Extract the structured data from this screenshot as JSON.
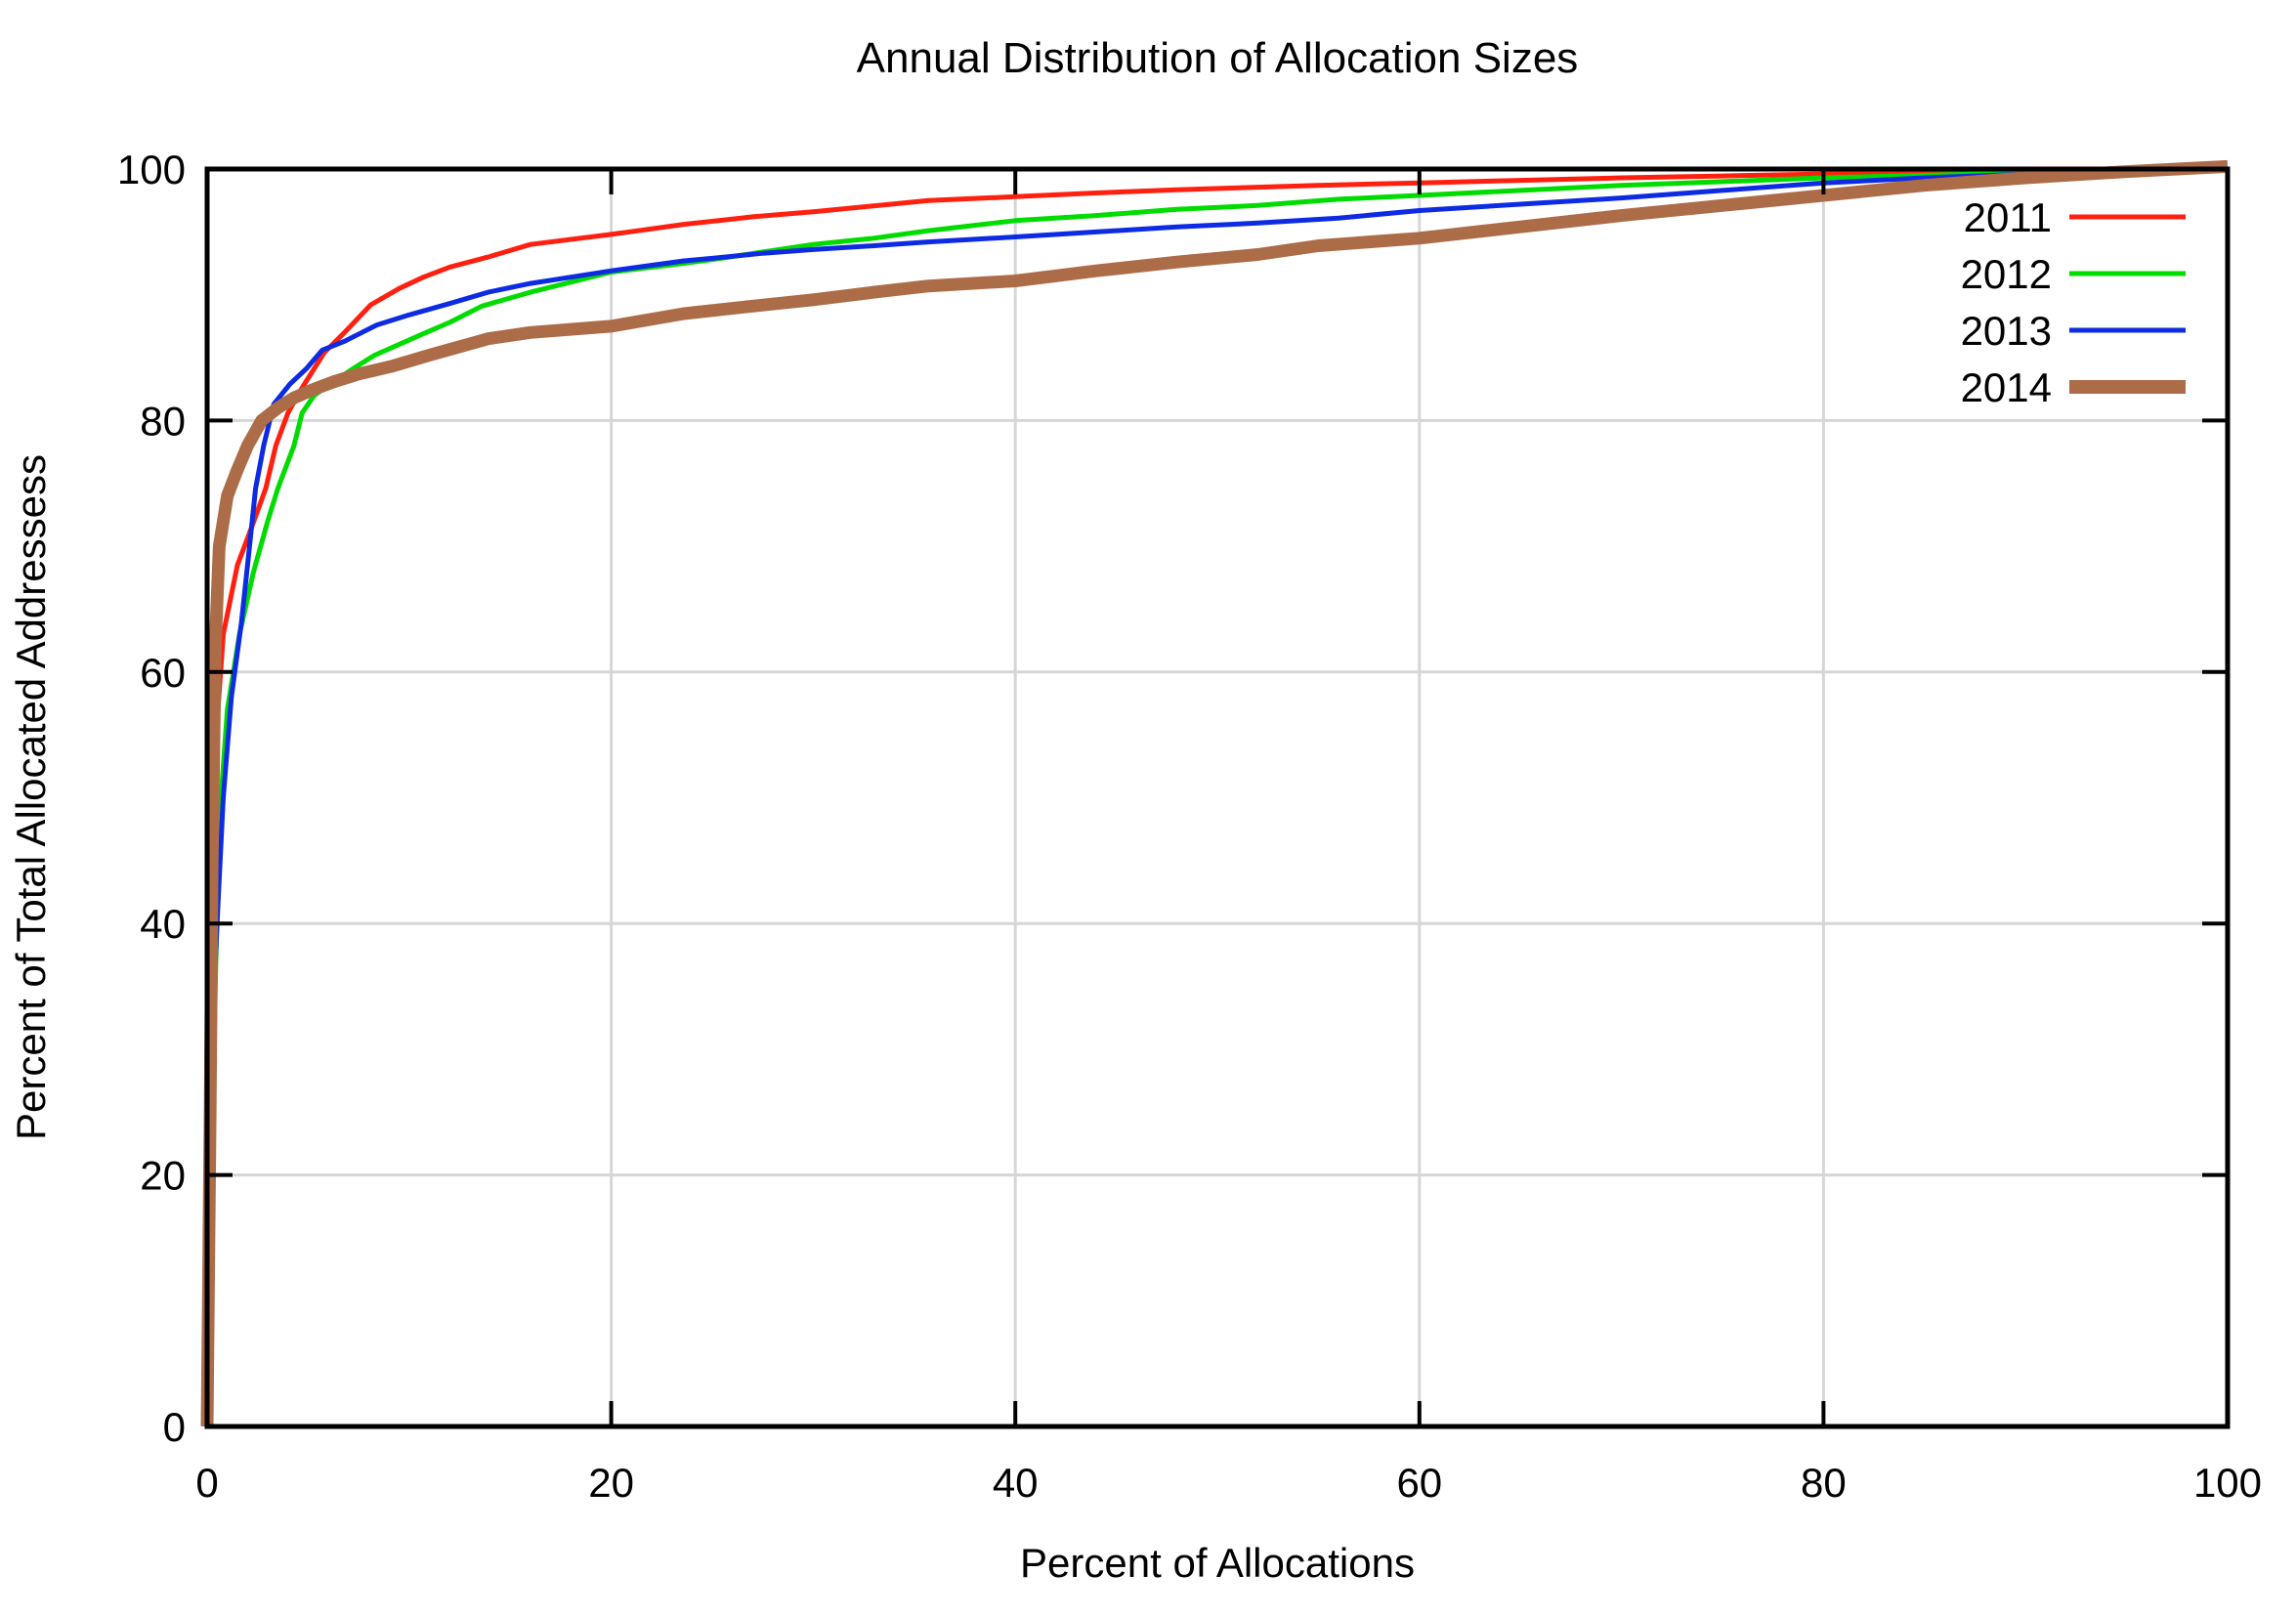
{
  "chart_data": {
    "type": "line",
    "title": "Annual Distribution of Allocation Sizes",
    "xlabel": "Percent of Allocations",
    "ylabel": "Percent of Total Allocated Addressess",
    "xlim": [
      0,
      100
    ],
    "ylim": [
      0,
      100
    ],
    "xticks": [
      0,
      20,
      40,
      60,
      80,
      100
    ],
    "yticks": [
      0,
      20,
      40,
      60,
      80,
      100
    ],
    "grid": true,
    "legend_position": "top-right-inside",
    "background": "#ffffff",
    "grid_color": "#d6d6d6",
    "border_color": "#000000",
    "series": [
      {
        "name": "2011",
        "color": "#ff2010",
        "thickness": "thin",
        "points": [
          [
            0,
            0
          ],
          [
            0.2,
            20
          ],
          [
            0.3,
            40
          ],
          [
            0.45,
            55
          ],
          [
            0.8,
            63
          ],
          [
            1.5,
            68.5
          ],
          [
            2.2,
            71.5
          ],
          [
            2.9,
            74.6
          ],
          [
            3.4,
            78
          ],
          [
            4,
            80.6
          ],
          [
            4.7,
            82.6
          ],
          [
            5.8,
            85.4
          ],
          [
            6.8,
            87
          ],
          [
            8.1,
            89.2
          ],
          [
            9.5,
            90.5
          ],
          [
            10.7,
            91.4
          ],
          [
            12,
            92.2
          ],
          [
            13.9,
            93
          ],
          [
            16,
            94
          ],
          [
            20,
            94.8
          ],
          [
            23.6,
            95.6
          ],
          [
            27,
            96.2
          ],
          [
            30,
            96.6
          ],
          [
            35.7,
            97.5
          ],
          [
            40,
            97.8
          ],
          [
            44,
            98.1
          ],
          [
            48,
            98.35
          ],
          [
            55,
            98.7
          ],
          [
            60,
            98.9
          ],
          [
            65,
            99.1
          ],
          [
            70,
            99.3
          ],
          [
            75,
            99.45
          ],
          [
            80,
            99.6
          ],
          [
            85,
            99.7
          ],
          [
            90,
            99.8
          ],
          [
            95,
            99.9
          ],
          [
            100,
            100
          ]
        ]
      },
      {
        "name": "2012",
        "color": "#00dc00",
        "thickness": "thin",
        "points": [
          [
            0,
            0
          ],
          [
            0.25,
            20
          ],
          [
            0.4,
            35
          ],
          [
            0.6,
            48
          ],
          [
            1,
            57
          ],
          [
            1.6,
            63
          ],
          [
            2.3,
            68
          ],
          [
            3,
            72
          ],
          [
            3.5,
            74.6
          ],
          [
            4.3,
            78
          ],
          [
            4.7,
            80.6
          ],
          [
            5.3,
            82
          ],
          [
            6,
            82.8
          ],
          [
            7.2,
            84.1
          ],
          [
            8.3,
            85.2
          ],
          [
            10.7,
            86.9
          ],
          [
            12,
            87.8
          ],
          [
            13.6,
            89.1
          ],
          [
            16,
            90.2
          ],
          [
            18,
            91
          ],
          [
            20,
            91.8
          ],
          [
            23.6,
            92.5
          ],
          [
            25,
            92.8
          ],
          [
            27.5,
            93.4
          ],
          [
            30,
            94
          ],
          [
            33,
            94.5
          ],
          [
            35.7,
            95.1
          ],
          [
            40,
            95.9
          ],
          [
            44,
            96.3
          ],
          [
            48,
            96.8
          ],
          [
            52,
            97.1
          ],
          [
            56,
            97.6
          ],
          [
            60,
            97.9
          ],
          [
            65,
            98.3
          ],
          [
            70,
            98.7
          ],
          [
            75,
            99
          ],
          [
            80,
            99.3
          ],
          [
            85,
            99.5
          ],
          [
            90,
            99.7
          ],
          [
            95,
            99.85
          ],
          [
            100,
            100
          ]
        ]
      },
      {
        "name": "2013",
        "color": "#0d2be2",
        "thickness": "thin",
        "points": [
          [
            0,
            0
          ],
          [
            0.2,
            20
          ],
          [
            0.35,
            35
          ],
          [
            0.55,
            42
          ],
          [
            0.8,
            50
          ],
          [
            1.2,
            58
          ],
          [
            1.7,
            64
          ],
          [
            2.1,
            70
          ],
          [
            2.4,
            74.6
          ],
          [
            2.8,
            78
          ],
          [
            3.3,
            81.3
          ],
          [
            4.1,
            82.9
          ],
          [
            4.9,
            84.1
          ],
          [
            5.7,
            85.6
          ],
          [
            6.8,
            86.3
          ],
          [
            8.4,
            87.6
          ],
          [
            10,
            88.4
          ],
          [
            12,
            89.3
          ],
          [
            13.9,
            90.2
          ],
          [
            16,
            90.9
          ],
          [
            18,
            91.4
          ],
          [
            20,
            91.9
          ],
          [
            23.6,
            92.7
          ],
          [
            25,
            92.9
          ],
          [
            27.5,
            93.3
          ],
          [
            30,
            93.6
          ],
          [
            33,
            93.9
          ],
          [
            35.7,
            94.2
          ],
          [
            40,
            94.6
          ],
          [
            44,
            95
          ],
          [
            48,
            95.4
          ],
          [
            52,
            95.7
          ],
          [
            56,
            96.1
          ],
          [
            60,
            96.7
          ],
          [
            65,
            97.2
          ],
          [
            70,
            97.7
          ],
          [
            75,
            98.3
          ],
          [
            80,
            98.9
          ],
          [
            85,
            99.3
          ],
          [
            90,
            99.6
          ],
          [
            95,
            99.8
          ],
          [
            100,
            100
          ]
        ]
      },
      {
        "name": "2014",
        "color": "#ad6c48",
        "thickness": "thick",
        "points": [
          [
            0,
            0
          ],
          [
            0.15,
            25
          ],
          [
            0.25,
            45
          ],
          [
            0.4,
            62
          ],
          [
            0.6,
            70
          ],
          [
            1,
            74
          ],
          [
            1.45,
            75.9
          ],
          [
            2,
            78
          ],
          [
            2.7,
            80
          ],
          [
            3.5,
            81
          ],
          [
            4.3,
            81.8
          ],
          [
            5.3,
            82.5
          ],
          [
            6.3,
            83.1
          ],
          [
            7.5,
            83.7
          ],
          [
            9.1,
            84.3
          ],
          [
            11,
            85.2
          ],
          [
            13.9,
            86.5
          ],
          [
            16,
            87
          ],
          [
            20,
            87.5
          ],
          [
            23.6,
            88.5
          ],
          [
            27,
            89.1
          ],
          [
            30,
            89.6
          ],
          [
            33,
            90.2
          ],
          [
            35.7,
            90.7
          ],
          [
            40,
            91.1
          ],
          [
            44,
            91.9
          ],
          [
            48,
            92.6
          ],
          [
            52,
            93.2
          ],
          [
            55,
            93.9
          ],
          [
            60,
            94.5
          ],
          [
            65,
            95.4
          ],
          [
            70,
            96.3
          ],
          [
            75,
            97.1
          ],
          [
            80,
            97.9
          ],
          [
            85,
            98.7
          ],
          [
            90,
            99.3
          ],
          [
            95,
            99.8
          ],
          [
            100,
            100.2
          ]
        ]
      }
    ]
  }
}
